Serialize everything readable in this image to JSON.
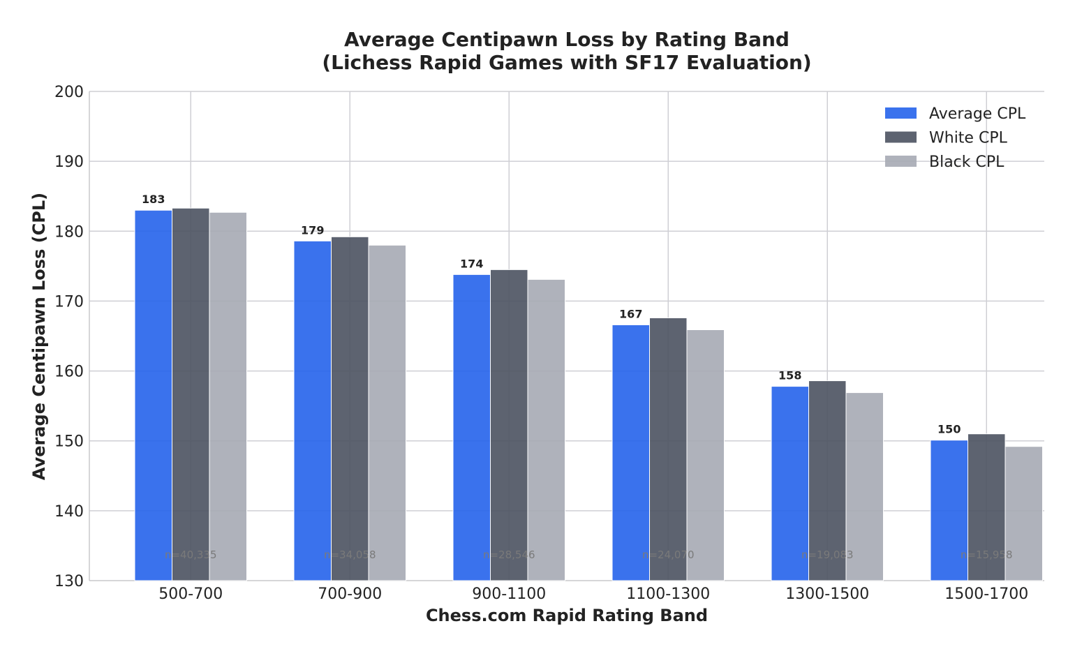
{
  "chart_data": {
    "type": "bar",
    "title_line1": "Average Centipawn Loss by Rating Band",
    "title_line2": "(Lichess Rapid Games with SF17 Evaluation)",
    "xlabel": "Chess.com Rapid Rating Band",
    "ylabel": "Average Centipawn Loss (CPL)",
    "ylim": [
      130,
      200
    ],
    "yticks": [
      130,
      140,
      150,
      160,
      170,
      180,
      190,
      200
    ],
    "categories": [
      "500-700",
      "700-900",
      "900-1100",
      "1100-1300",
      "1300-1500",
      "1500-1700"
    ],
    "series": [
      {
        "name": "Average CPL",
        "color": "#2563eb",
        "values": [
          183.0,
          178.6,
          173.8,
          166.6,
          157.8,
          150.1
        ]
      },
      {
        "name": "White CPL",
        "color": "#4b5260",
        "values": [
          183.3,
          179.2,
          174.5,
          167.6,
          158.6,
          151.0
        ]
      },
      {
        "name": "Black CPL",
        "color": "#a6aab4",
        "values": [
          182.7,
          178.0,
          173.1,
          165.9,
          156.9,
          149.2
        ]
      }
    ],
    "data_labels": [
      "183",
      "179",
      "174",
      "167",
      "158",
      "150"
    ],
    "sample_sizes": [
      "n=40,335",
      "n=34,058",
      "n=28,546",
      "n=24,070",
      "n=19,083",
      "n=15,958"
    ],
    "grid": true,
    "legend_position": "top-right"
  }
}
